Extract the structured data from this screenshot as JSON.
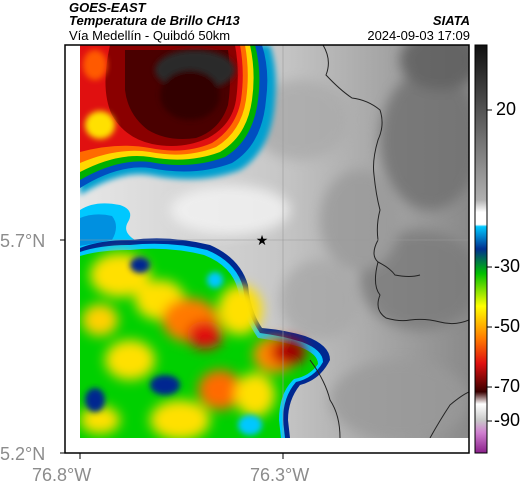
{
  "header": {
    "satellite": "GOES-EAST",
    "product": "Temperatura de Brillo CH13",
    "region": "Vía Medellín - Quibdó 50km",
    "source": "SIATA",
    "datetime": "2024-09-03 17:09"
  },
  "axes": {
    "lat_labels": [
      "5.7°N",
      "5.2°N"
    ],
    "lon_labels": [
      "76.8°W",
      "76.3°W"
    ]
  },
  "colorbar": {
    "tick_labels": [
      "20",
      "-30",
      "-50",
      "-70",
      "-90"
    ]
  },
  "colors": {
    "cold_tops": "#3a0000",
    "deep_red": "#c81414",
    "orange": "#ff7a00",
    "yellow": "#ffff00",
    "green": "#00c800",
    "blue": "#0040c0",
    "cyan": "#00c8ff",
    "magenta": "#c040c0"
  }
}
